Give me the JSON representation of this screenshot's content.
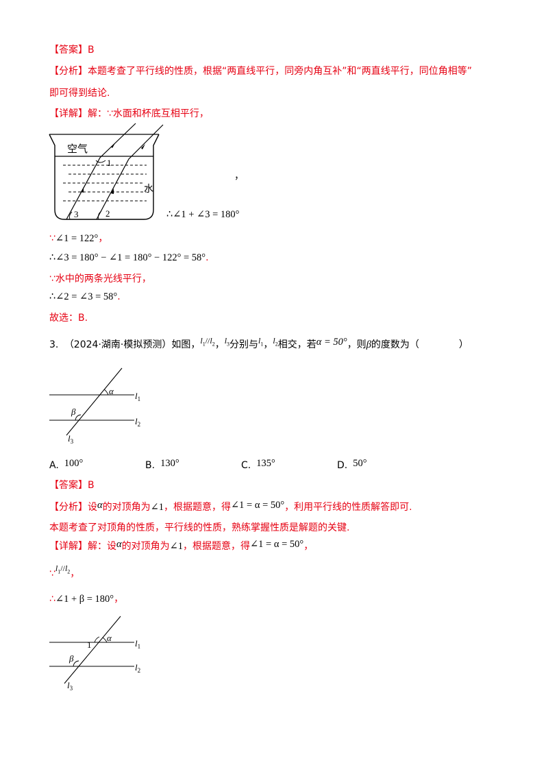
{
  "q2": {
    "answer_tag": "【答案】",
    "answer_val": "B",
    "analysis_tag": "【分析】",
    "analysis_l1": "本题考查了平行线的性质，根据“两直线平行，同旁内角互补”和“两直线平行，同位角相等”",
    "analysis_l2": "即可得到结论.",
    "detail_tag": "【详解】",
    "detail_l1": "解：∵水面和杯底互相平行，",
    "fig": {
      "air": "空气",
      "water": "水",
      "a1": "1",
      "a2": "2",
      "a3": "3"
    },
    "comma": "，",
    "therefore1": "∴∠1 + ∠3 = 180°",
    "because_sym": "∵",
    "step_given": "∠1 = 122°",
    "comma2": "，",
    "step_calc": "∴∠3 = 180° − ∠1 = 180° − 122° = 58°",
    "dot1": ".",
    "because2": "∵",
    "parallel_text": "水中的两条光线平行，",
    "step_result": "∴∠2 = ∠3 = 58°",
    "dot2": ".",
    "choose": "故选：B."
  },
  "q3": {
    "number": "3.",
    "source": "（2024·湖南·模拟预测）如图，",
    "l1": "l",
    "l1_sub": "1",
    "par": "//",
    "l2": "l",
    "l2_sub": "2",
    "c1": "，",
    "l3": "l",
    "l3_sub": "3",
    "t1": "分别与",
    "l1b": "l",
    "l1b_sub": "1",
    "c2": "，",
    "l2b": "l",
    "l2b_sub": "2",
    "t2": "相交，若",
    "alpha_eq": "α = 50°",
    "t3": "，则",
    "beta": "β",
    "t4": "的度数为（",
    "t5": "）",
    "fig1": {
      "alpha": "α",
      "beta": "β",
      "l1": "l",
      "l1s": "1",
      "l2": "l",
      "l2s": "2",
      "l3": "l",
      "l3s": "3"
    },
    "options": [
      {
        "key": "A.",
        "val": "100°"
      },
      {
        "key": "B.",
        "val": "130°"
      },
      {
        "key": "C.",
        "val": "135°"
      },
      {
        "key": "D.",
        "val": "50°"
      }
    ],
    "answer_tag": "【答案】",
    "answer_val": "B",
    "analysis_tag": "【分析】",
    "an_a": "设",
    "an_alpha": "α",
    "an_b": "的对顶角为",
    "an_ang1": "∠1",
    "an_c": "，根据题意，得",
    "an_eq": "∠1 = α = 50°",
    "an_d": "，利用平行线的性质解答即可.",
    "analysis_l2": "本题考查了对顶角的性质，平行线的性质，熟练掌握性质是解题的关键.",
    "detail_tag": "【详解】",
    "de_a": "解：设",
    "de_alpha": "α",
    "de_b": "的对顶角为",
    "de_ang1": "∠1",
    "de_c": "，根据题意，得",
    "de_eq": "∠1 = α = 50°",
    "de_d": "，",
    "because": "∵",
    "para_l1": "l",
    "para_l1s": "1",
    "para_sym": "//",
    "para_l2": "l",
    "para_l2s": "2",
    "para_comma": "，",
    "therefore": "∴",
    "sum_eq": "∠1 + β = 180°",
    "sum_comma": "，",
    "fig2": {
      "one": "1",
      "alpha": "α",
      "beta": "β",
      "l1": "l",
      "l1s": "1",
      "l2": "l",
      "l2s": "2",
      "l3": "l",
      "l3s": "3"
    }
  }
}
